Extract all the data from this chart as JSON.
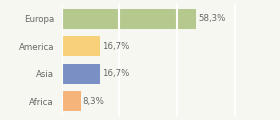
{
  "categories": [
    "Europa",
    "America",
    "Asia",
    "Africa"
  ],
  "values": [
    58.3,
    16.7,
    16.7,
    8.3
  ],
  "labels": [
    "58,3%",
    "16,7%",
    "16,7%",
    "8,3%"
  ],
  "bar_colors": [
    "#b5c98e",
    "#f9d07a",
    "#7a8fc4",
    "#f5b47a"
  ],
  "background_color": "#f7f7f2",
  "xlim": [
    0,
    80
  ],
  "grid_color": "#ffffff",
  "text_color": "#666666",
  "label_fontsize": 6.2,
  "ytick_fontsize": 6.2
}
